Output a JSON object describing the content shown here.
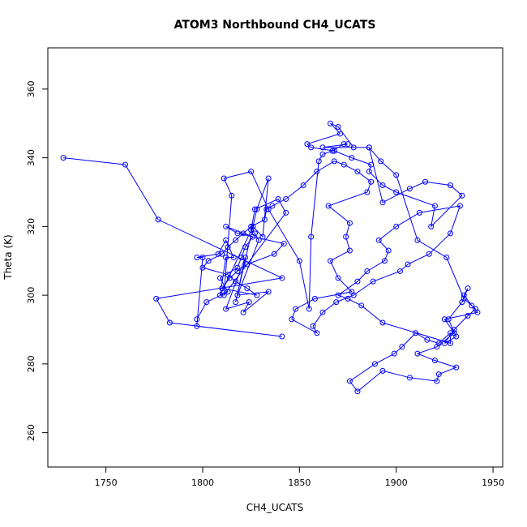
{
  "chart_data": {
    "type": "line",
    "title": "ATOM3 Northbound CH4_UCATS",
    "xlabel": "CH4_UCATS",
    "ylabel": "Theta (K)",
    "xlim": [
      1720,
      1955
    ],
    "ylim": [
      250,
      372
    ],
    "x_ticks": [
      1750,
      1800,
      1850,
      1900,
      1950
    ],
    "y_ticks": [
      260,
      280,
      300,
      320,
      340,
      360
    ],
    "grid": false,
    "legend": "none",
    "line_color": "#0000ff",
    "marker": "open-circle",
    "series": [
      {
        "x": [
          1728,
          1760,
          1777,
          1841,
          1776,
          1783,
          1841,
          1797,
          1800,
          1797,
          1808,
          1812,
          1816,
          1812,
          1809,
          1826,
          1831,
          1834,
          1828,
          1817,
          1822,
          1812,
          1824,
          1821,
          1834,
          1818,
          1829,
          1827,
          1825,
          1827,
          1839,
          1843,
          1811,
          1815,
          1811,
          1825,
          1834,
          1850,
          1855,
          1856,
          1860,
          1862,
          1867,
          1873,
          1875,
          1862,
          1886,
          1893,
          1907,
          1915,
          1928,
          1934,
          1918,
          1920,
          1900,
          1893,
          1886,
          1887,
          1877,
          1868,
          1856,
          1854,
          1871,
          1866,
          1870,
          1878,
          1886,
          1892,
          1900,
          1911,
          1926,
          1935,
          1941,
          1937,
          1930,
          1925,
          1931,
          1927,
          1934,
          1937,
          1935,
          1939,
          1942,
          1925,
          1930,
          1921,
          1911,
          1920,
          1931,
          1922,
          1921,
          1907,
          1893,
          1880,
          1876,
          1889,
          1899,
          1903,
          1910,
          1916,
          1922,
          1928,
          1928,
          1893,
          1882,
          1875,
          1870,
          1880,
          1885,
          1894,
          1896,
          1891,
          1900,
          1912,
          1933,
          1928,
          1917,
          1906,
          1902,
          1888,
          1878,
          1869,
          1862,
          1857,
          1859,
          1846,
          1848,
          1858,
          1877,
          1870,
          1866,
          1876,
          1874,
          1876,
          1865,
          1885,
          1887,
          1880,
          1873,
          1868,
          1859,
          1852,
          1843,
          1836,
          1833,
          1832,
          1825,
          1821,
          1817,
          1813,
          1810,
          1803,
          1800,
          1813,
          1817,
          1823,
          1828,
          1810,
          1814,
          1818,
          1823,
          1837,
          1842,
          1818,
          1812,
          1826,
          1822,
          1820,
          1818,
          1809,
          1813,
          1802,
          1797
        ],
        "y": [
          340,
          338,
          322,
          305,
          299,
          292,
          288,
          291,
          311,
          311,
          312,
          316,
          311,
          311,
          300,
          320,
          317,
          334,
          325,
          298,
          311,
          296,
          298,
          295,
          301,
          300,
          316,
          318,
          319,
          325,
          328,
          324,
          300,
          329,
          334,
          336,
          325,
          310,
          296,
          317,
          339,
          341,
          342,
          344,
          344,
          343,
          343,
          327,
          331,
          333,
          332,
          329,
          320,
          326,
          330,
          332,
          336,
          338,
          340,
          342,
          343,
          344,
          347,
          350,
          349,
          343,
          343,
          339,
          335,
          316,
          311,
          299,
          296,
          294,
          290,
          286,
          288,
          293,
          298,
          302,
          300,
          297,
          295,
          293,
          289,
          285,
          283,
          281,
          279,
          277,
          275,
          276,
          278,
          272,
          275,
          280,
          283,
          285,
          289,
          287,
          286,
          289,
          286,
          292,
          297,
          299,
          300,
          304,
          307,
          310,
          313,
          316,
          320,
          324,
          326,
          318,
          312,
          309,
          307,
          304,
          300,
          298,
          295,
          291,
          289,
          293,
          296,
          299,
          301,
          305,
          310,
          313,
          317,
          321,
          326,
          330,
          333,
          336,
          338,
          339,
          336,
          332,
          328,
          326,
          325,
          322,
          320,
          318,
          316,
          314,
          312,
          310,
          308,
          306,
          304,
          302,
          300,
          302,
          305,
          307,
          309,
          312,
          315,
          318,
          320,
          317,
          314,
          311,
          308,
          305,
          301,
          298,
          293
        ]
      }
    ]
  }
}
